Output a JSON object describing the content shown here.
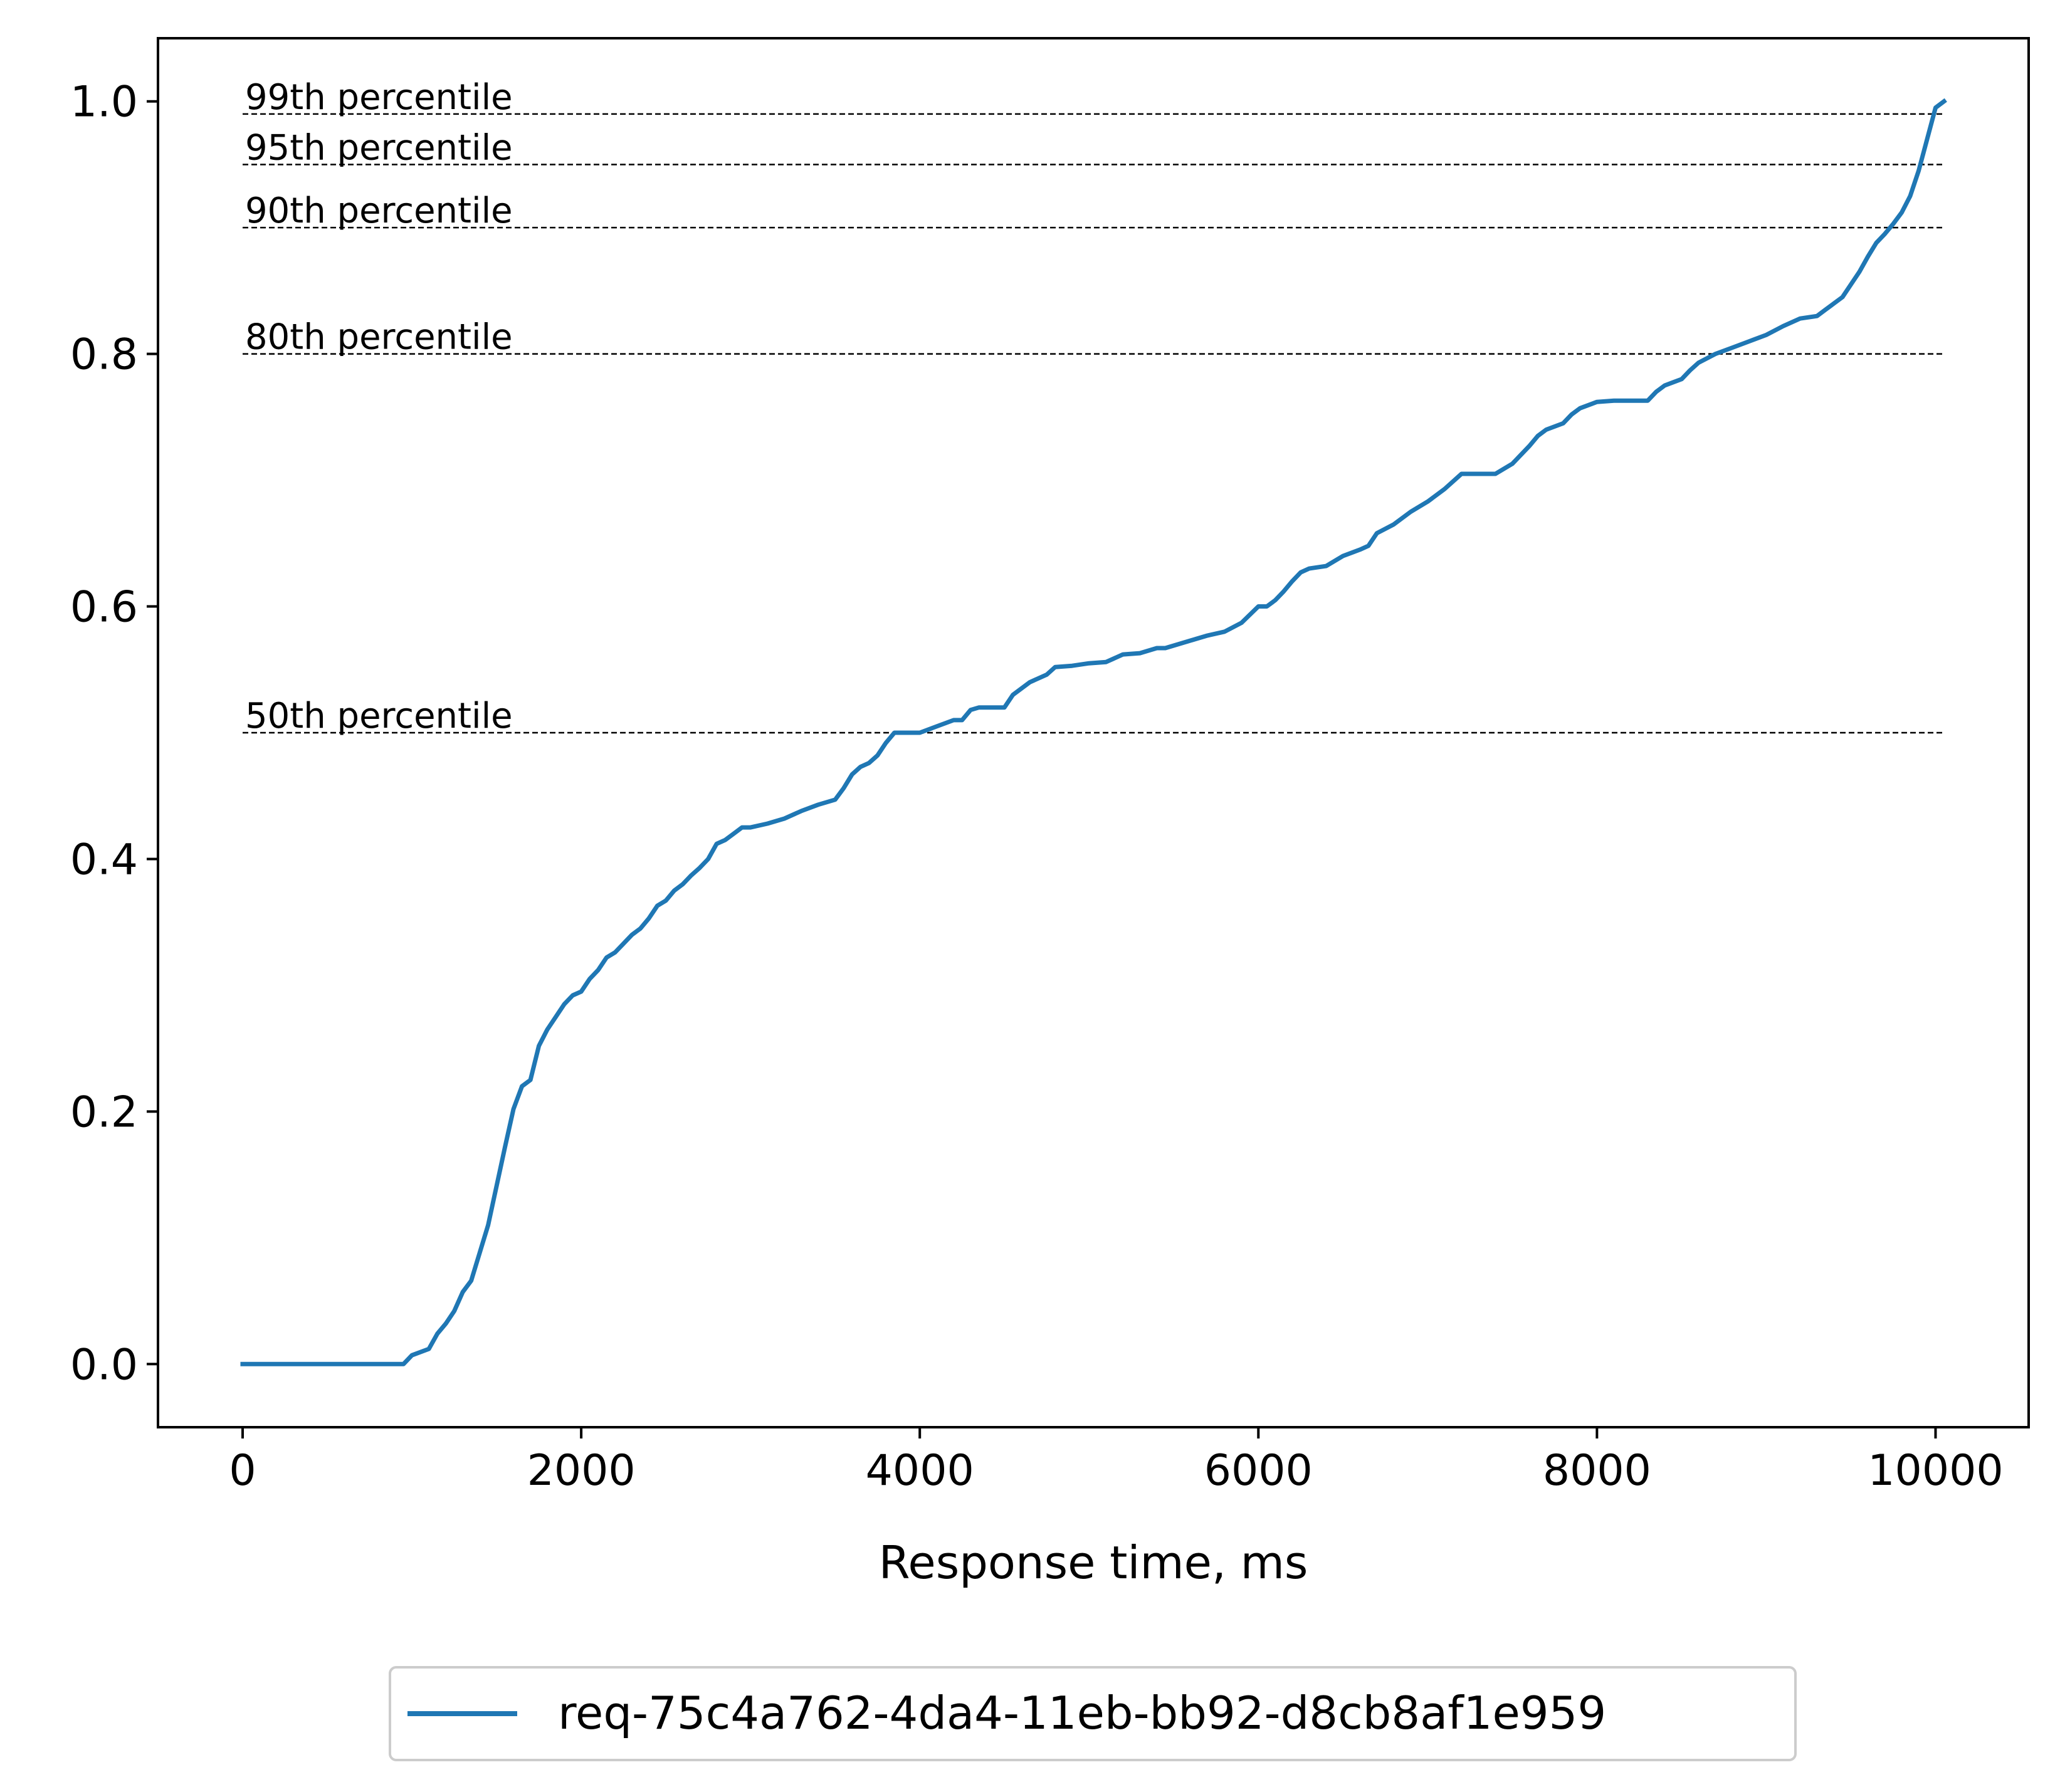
{
  "chart_data": {
    "type": "line",
    "xlabel": "Response time, ms",
    "ylabel": "",
    "xlim": [
      -500,
      10550
    ],
    "ylim": [
      -0.05,
      1.05
    ],
    "x_ticks": [
      0,
      2000,
      4000,
      6000,
      8000,
      10000
    ],
    "x_tick_labels": [
      "0",
      "2000",
      "4000",
      "6000",
      "8000",
      "10000"
    ],
    "y_ticks": [
      0.0,
      0.2,
      0.4,
      0.6,
      0.8,
      1.0
    ],
    "y_tick_labels": [
      "0.0",
      "0.2",
      "0.4",
      "0.6",
      "0.8",
      "1.0"
    ],
    "grid": false,
    "legend_position": "bottom-center, below axes",
    "series": [
      {
        "name": "req-75c4a762-4da4-11eb-bb92-d8cb8af1e959",
        "color": "#1f77b4",
        "x": [
          0,
          950,
          1000,
          1100,
          1150,
          1200,
          1250,
          1300,
          1350,
          1400,
          1450,
          1500,
          1550,
          1600,
          1650,
          1700,
          1750,
          1800,
          1850,
          1900,
          1950,
          2000,
          2050,
          2100,
          2150,
          2200,
          2250,
          2300,
          2350,
          2400,
          2450,
          2500,
          2550,
          2600,
          2650,
          2700,
          2750,
          2800,
          2850,
          2900,
          2950,
          3000,
          3100,
          3200,
          3300,
          3400,
          3500,
          3550,
          3600,
          3650,
          3700,
          3750,
          3800,
          3850,
          3900,
          4000,
          4100,
          4200,
          4250,
          4300,
          4350,
          4500,
          4550,
          4650,
          4750,
          4800,
          4900,
          5000,
          5100,
          5200,
          5300,
          5400,
          5450,
          5600,
          5700,
          5800,
          5900,
          6000,
          6050,
          6100,
          6150,
          6200,
          6250,
          6300,
          6400,
          6500,
          6600,
          6650,
          6700,
          6800,
          6900,
          7000,
          7100,
          7200,
          7300,
          7400,
          7500,
          7550,
          7600,
          7650,
          7700,
          7800,
          7850,
          7900,
          8000,
          8100,
          8200,
          8300,
          8350,
          8400,
          8500,
          8550,
          8600,
          8700,
          8800,
          8900,
          9000,
          9100,
          9200,
          9300,
          9350,
          9400,
          9450,
          9500,
          9550,
          9600,
          9650,
          9700,
          9750,
          9800,
          9850,
          9900,
          9950,
          10000,
          10050
        ],
        "y": [
          0.0,
          0.0,
          0.007,
          0.012,
          0.024,
          0.032,
          0.042,
          0.057,
          0.066,
          0.088,
          0.11,
          0.141,
          0.172,
          0.202,
          0.22,
          0.225,
          0.252,
          0.265,
          0.275,
          0.285,
          0.292,
          0.295,
          0.305,
          0.312,
          0.322,
          0.326,
          0.333,
          0.34,
          0.345,
          0.353,
          0.363,
          0.367,
          0.375,
          0.38,
          0.387,
          0.393,
          0.4,
          0.412,
          0.415,
          0.42,
          0.425,
          0.425,
          0.428,
          0.432,
          0.438,
          0.443,
          0.447,
          0.456,
          0.467,
          0.473,
          0.476,
          0.482,
          0.492,
          0.5,
          0.5,
          0.5,
          0.505,
          0.51,
          0.51,
          0.518,
          0.52,
          0.52,
          0.53,
          0.54,
          0.546,
          0.552,
          0.553,
          0.555,
          0.556,
          0.562,
          0.563,
          0.567,
          0.567,
          0.573,
          0.577,
          0.58,
          0.587,
          0.6,
          0.6,
          0.605,
          0.612,
          0.62,
          0.627,
          0.63,
          0.632,
          0.64,
          0.645,
          0.648,
          0.658,
          0.665,
          0.675,
          0.683,
          0.693,
          0.705,
          0.705,
          0.705,
          0.713,
          0.72,
          0.727,
          0.735,
          0.74,
          0.745,
          0.752,
          0.757,
          0.762,
          0.763,
          0.763,
          0.763,
          0.77,
          0.775,
          0.78,
          0.787,
          0.793,
          0.8,
          0.805,
          0.81,
          0.815,
          0.822,
          0.828,
          0.83,
          0.835,
          0.84,
          0.845,
          0.855,
          0.865,
          0.877,
          0.888,
          0.895,
          0.903,
          0.912,
          0.925,
          0.945,
          0.97,
          0.995,
          1.0
        ]
      }
    ],
    "percentile_lines": [
      {
        "label": "99th percentile",
        "y": 0.99,
        "x_start": 0,
        "x_end": 10050
      },
      {
        "label": "95th percentile",
        "y": 0.95,
        "x_start": 0,
        "x_end": 10050
      },
      {
        "label": "90th percentile",
        "y": 0.9,
        "x_start": 0,
        "x_end": 10050
      },
      {
        "label": "80th percentile",
        "y": 0.8,
        "x_start": 0,
        "x_end": 10050
      },
      {
        "label": "50th percentile",
        "y": 0.5,
        "x_start": 0,
        "x_end": 10050
      }
    ]
  }
}
